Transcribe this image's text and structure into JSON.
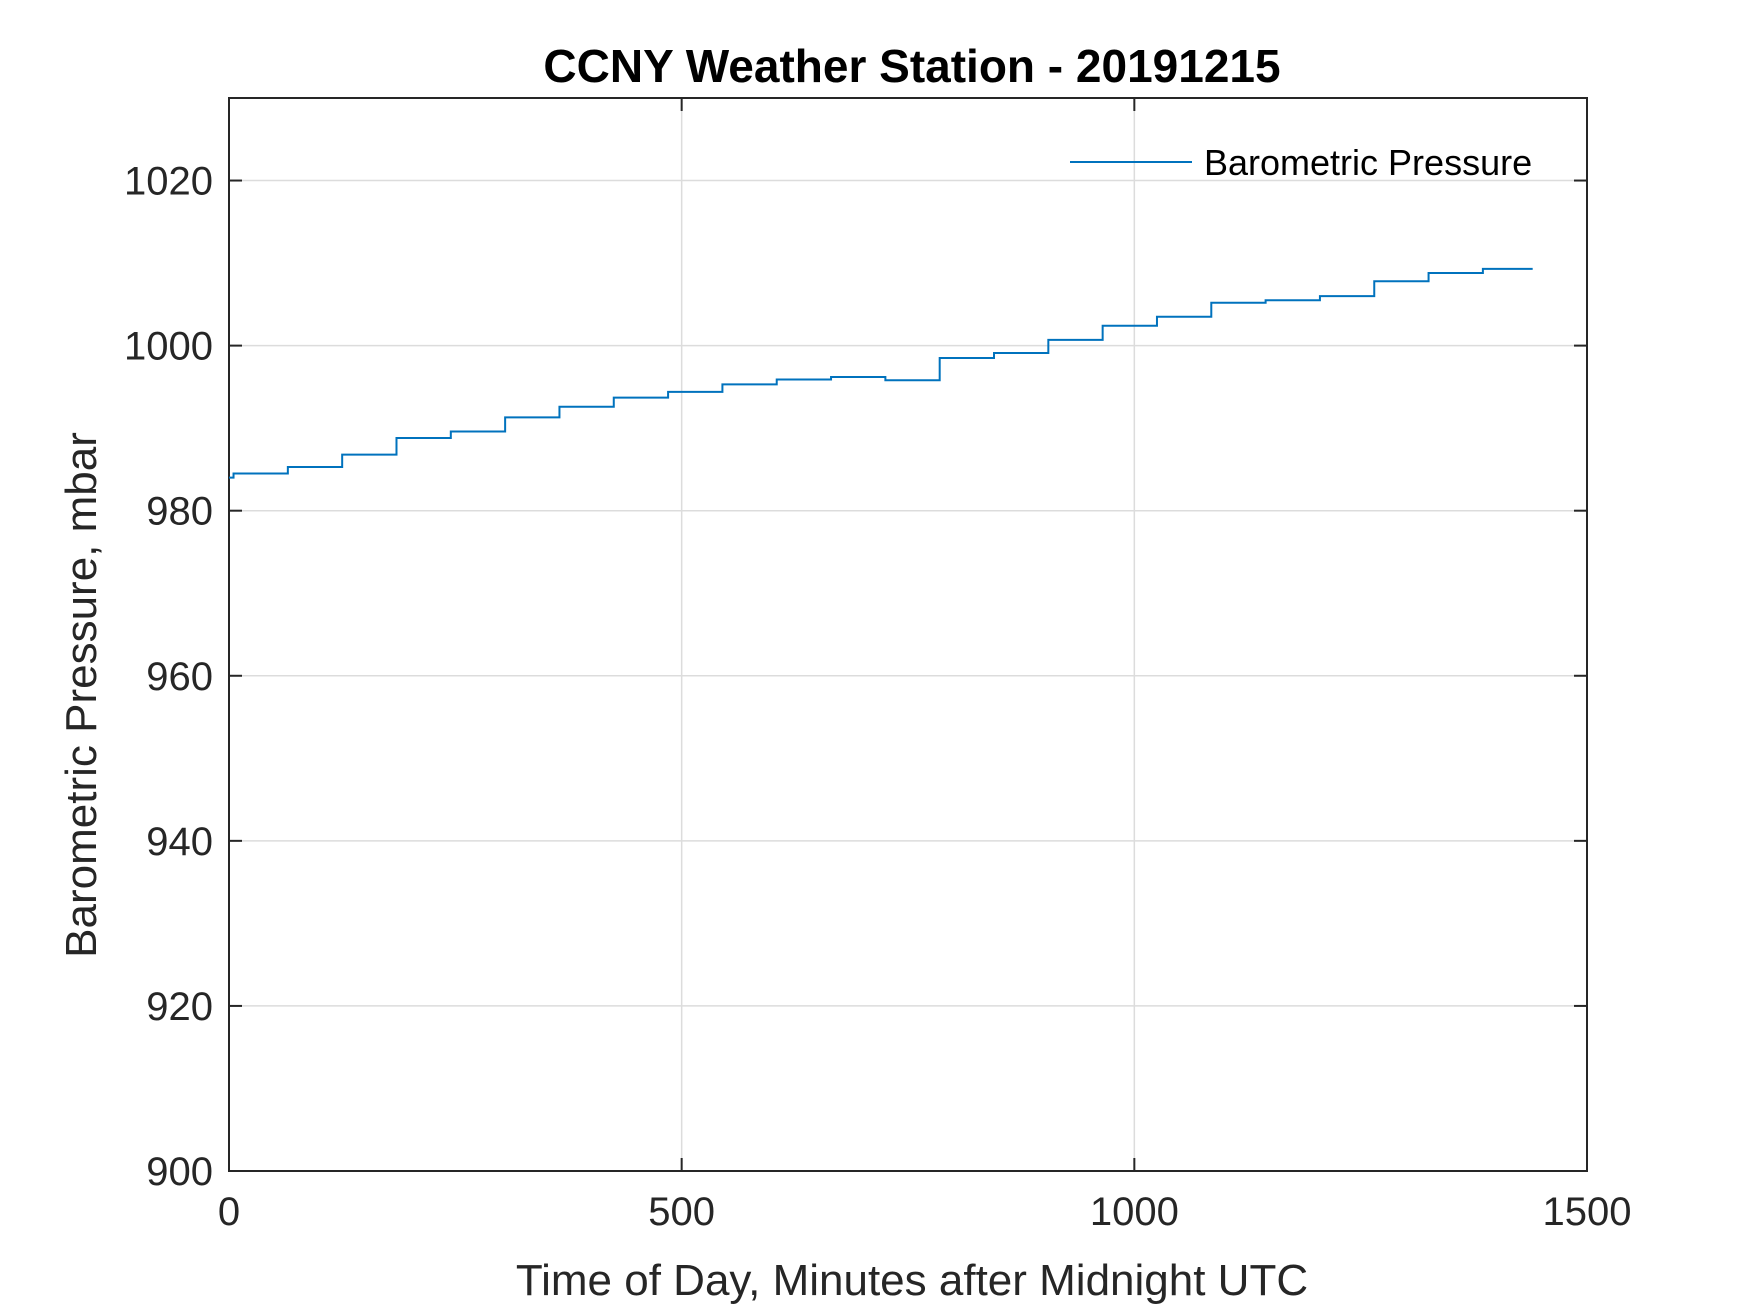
{
  "chart_data": {
    "type": "line",
    "title": "CCNY Weather Station - 20191215",
    "xlabel": "Time of Day, Minutes after Midnight UTC",
    "ylabel": "Barometric Pressure, mbar",
    "xlim": [
      0,
      1500
    ],
    "ylim": [
      900,
      1030
    ],
    "xticks": [
      0,
      500,
      1000,
      1500
    ],
    "yticks": [
      900,
      920,
      940,
      960,
      980,
      1000,
      1020
    ],
    "xtick_labels": [
      "0",
      "500",
      "1000",
      "1500"
    ],
    "ytick_labels": [
      "900",
      "920",
      "940",
      "960",
      "980",
      "1000",
      "1020"
    ],
    "grid": true,
    "legend_position": "top-right",
    "series": [
      {
        "name": "Barometric Pressure",
        "color": "#0072BD",
        "step": true,
        "x": [
          0,
          5,
          65,
          125,
          185,
          245,
          305,
          365,
          425,
          485,
          545,
          605,
          665,
          725,
          785,
          845,
          905,
          965,
          1025,
          1085,
          1145,
          1205,
          1265,
          1325,
          1385,
          1440
        ],
        "y": [
          984,
          984.5,
          985.3,
          986.8,
          988.8,
          989.6,
          991.3,
          992.6,
          993.7,
          994.4,
          995.3,
          995.9,
          996.2,
          995.8,
          998.5,
          999.1,
          1000.7,
          1002.4,
          1003.5,
          1005.2,
          1005.5,
          1006.0,
          1007.8,
          1008.8,
          1009.3,
          1009.3
        ]
      }
    ]
  }
}
